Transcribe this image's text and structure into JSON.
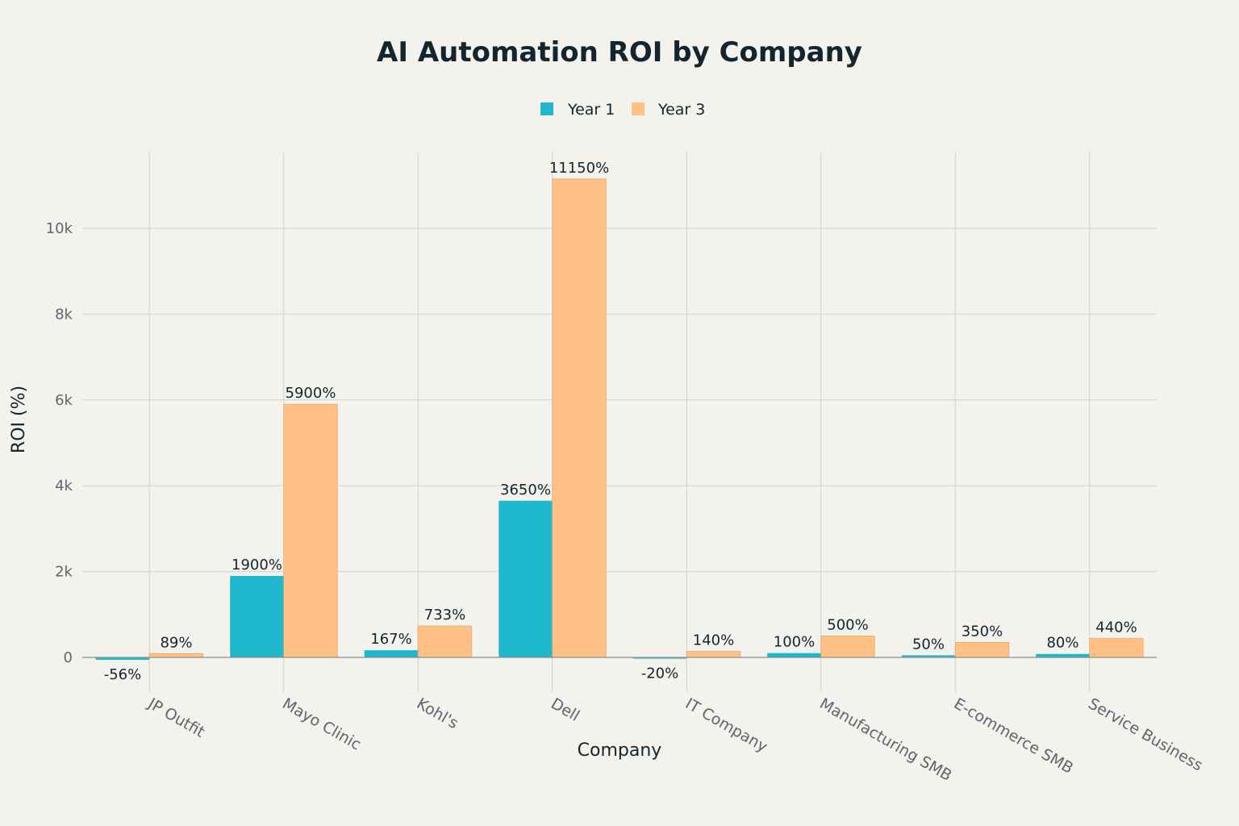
{
  "chart_data": {
    "type": "bar",
    "title": "AI Automation ROI by Company",
    "xlabel": "Company",
    "ylabel": "ROI (%)",
    "categories": [
      "JP Outfit",
      "Mayo Clinic",
      "Kohl's",
      "Dell",
      "IT Company",
      "Manufacturing SMB",
      "E-commerce SMB",
      "Service Business"
    ],
    "series": [
      {
        "name": "Year 1",
        "color": "#1fb8cd",
        "values": [
          -56,
          1900,
          167,
          3650,
          -20,
          100,
          50,
          80
        ],
        "labels": [
          "-56%",
          "1900%",
          "167%",
          "3650%",
          "-20%",
          "100%",
          "50%",
          "80%"
        ]
      },
      {
        "name": "Year 3",
        "color": "#ffc185",
        "values": [
          89,
          5900,
          733,
          11150,
          140,
          500,
          350,
          440
        ],
        "labels": [
          "89%",
          "5900%",
          "733%",
          "11150%",
          "140%",
          "500%",
          "350%",
          "440%"
        ]
      }
    ],
    "ylim": [
      -800,
      11800
    ],
    "yticks": [
      0,
      2000,
      4000,
      6000,
      8000,
      10000
    ],
    "ytick_labels": [
      "0",
      "2k",
      "4k",
      "6k",
      "8k",
      "10k"
    ],
    "grid": true,
    "legend_position": "top-center"
  }
}
